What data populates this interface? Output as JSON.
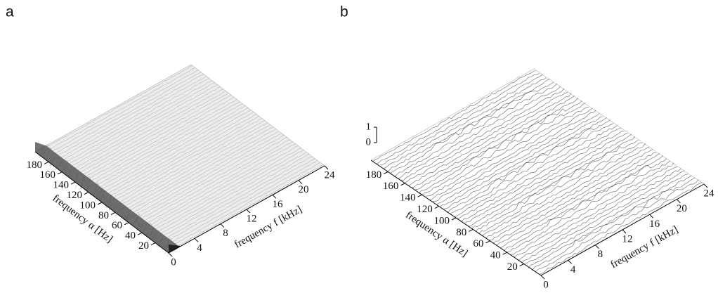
{
  "chart_data": [
    {
      "type": "waterfall",
      "label": "a",
      "xlabel": "frequency α [Hz]",
      "ylabel": "frequency f [kHz]",
      "xlim": [
        0,
        200
      ],
      "xticks": [
        20,
        40,
        60,
        80,
        100,
        120,
        140,
        160,
        180
      ],
      "ylim": [
        0,
        24
      ],
      "yticks": [
        0,
        4,
        8,
        12,
        16,
        20,
        24
      ]
    },
    {
      "type": "waterfall",
      "label": "b",
      "xlabel": "frequency α [Hz]",
      "ylabel": "frequency f [kHz]",
      "xlim": [
        0,
        200
      ],
      "xticks": [
        20,
        40,
        60,
        80,
        100,
        120,
        140,
        160,
        180
      ],
      "ylim": [
        0,
        24
      ],
      "yticks": [
        0,
        4,
        8,
        12,
        16,
        20,
        24
      ],
      "zlim": [
        0,
        1
      ],
      "zticks": [
        0,
        1
      ]
    }
  ]
}
